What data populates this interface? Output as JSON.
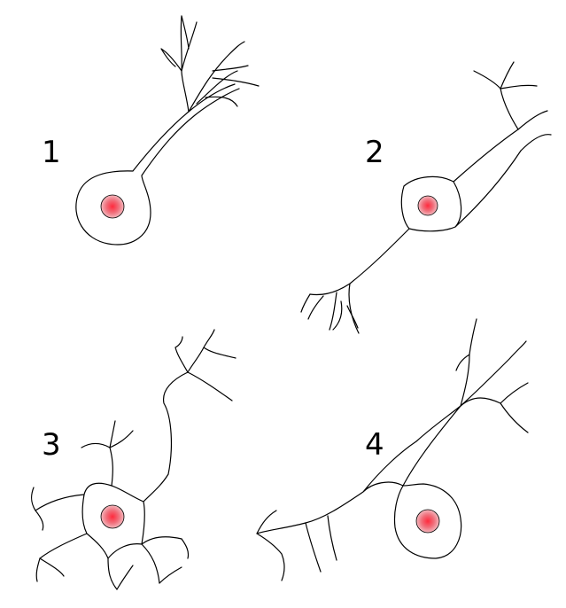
{
  "labels": {
    "n1": "1",
    "n2": "2",
    "n3": "3",
    "n4": "4"
  },
  "colors": {
    "nucleus_center": "#ff3b4a",
    "nucleus_edge": "#f0a0a8",
    "outline": "#000000",
    "background": "#ffffff"
  }
}
